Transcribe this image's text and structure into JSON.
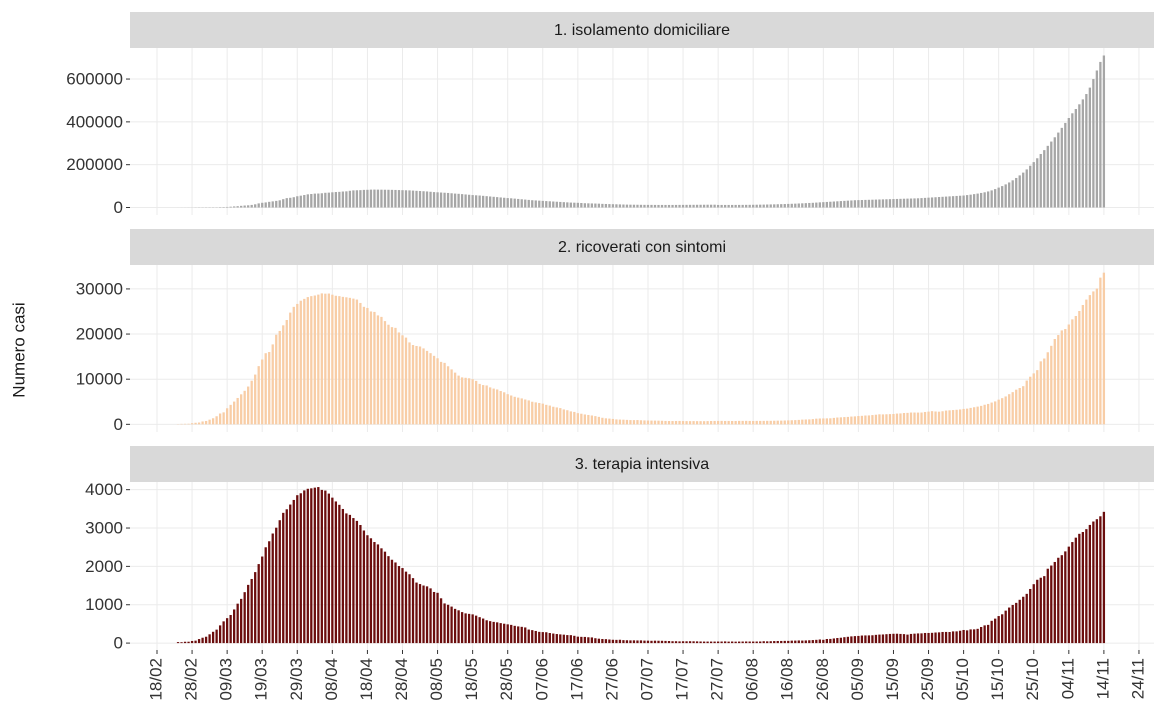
{
  "chart_data": {
    "type": "bar",
    "y_label": "Numero casi",
    "categories": [
      "18/02",
      null,
      null,
      null,
      null,
      null,
      null,
      null,
      null,
      null,
      "28/02",
      null,
      null,
      null,
      null,
      null,
      null,
      null,
      null,
      null,
      "09/03",
      null,
      null,
      null,
      null,
      null,
      null,
      null,
      null,
      null,
      "19/03",
      null,
      null,
      null,
      null,
      null,
      null,
      null,
      null,
      null,
      "29/03",
      null,
      null,
      null,
      null,
      null,
      null,
      null,
      null,
      null,
      "08/04",
      null,
      null,
      null,
      null,
      null,
      null,
      null,
      null,
      null,
      "18/04",
      null,
      null,
      null,
      null,
      null,
      null,
      null,
      null,
      null,
      "28/04",
      null,
      null,
      null,
      null,
      null,
      null,
      null,
      null,
      null,
      "08/05",
      null,
      null,
      null,
      null,
      null,
      null,
      null,
      null,
      null,
      "18/05",
      null,
      null,
      null,
      null,
      null,
      null,
      null,
      null,
      null,
      "28/05",
      null,
      null,
      null,
      null,
      null,
      null,
      null,
      null,
      null,
      "07/06",
      null,
      null,
      null,
      null,
      null,
      null,
      null,
      null,
      null,
      "17/06",
      null,
      null,
      null,
      null,
      null,
      null,
      null,
      null,
      null,
      "27/06",
      null,
      null,
      null,
      null,
      null,
      null,
      null,
      null,
      null,
      "07/07",
      null,
      null,
      null,
      null,
      null,
      null,
      null,
      null,
      null,
      "17/07",
      null,
      null,
      null,
      null,
      null,
      null,
      null,
      null,
      null,
      "27/07",
      null,
      null,
      null,
      null,
      null,
      null,
      null,
      null,
      null,
      "06/08",
      null,
      null,
      null,
      null,
      null,
      null,
      null,
      null,
      null,
      "16/08",
      null,
      null,
      null,
      null,
      null,
      null,
      null,
      null,
      null,
      "26/08",
      null,
      null,
      null,
      null,
      null,
      null,
      null,
      null,
      null,
      "05/09",
      null,
      null,
      null,
      null,
      null,
      null,
      null,
      null,
      null,
      "15/09",
      null,
      null,
      null,
      null,
      null,
      null,
      null,
      null,
      null,
      "25/09",
      null,
      null,
      null,
      null,
      null,
      null,
      null,
      null,
      null,
      "05/10",
      null,
      null,
      null,
      null,
      null,
      null,
      null,
      null,
      null,
      "15/10",
      null,
      null,
      null,
      null,
      null,
      null,
      null,
      null,
      null,
      "25/10",
      null,
      null,
      null,
      null,
      null,
      null,
      null,
      null,
      null,
      "04/11",
      null,
      null,
      null,
      null,
      null,
      null,
      null,
      null,
      null,
      "14/11",
      null,
      null,
      null,
      null,
      null,
      null,
      null,
      null,
      null,
      "24/11"
    ],
    "panels": [
      {
        "title": "1. isolamento domiciliare",
        "color": "#a6a6a6",
        "ylim": [
          -35000,
          745000
        ],
        "yticks": [
          0,
          200000,
          400000,
          600000
        ],
        "values": [
          null,
          null,
          null,
          null,
          null,
          null,
          94,
          162,
          221,
          284,
          412,
          543,
          798,
          927,
          1000,
          1065,
          1155,
          1060,
          1843,
          2180,
          2599,
          3724,
          5036,
          6201,
          7860,
          9268,
          10197,
          12090,
          14935,
          19185,
          22116,
          23783,
          26522,
          28697,
          30920,
          33648,
          38937,
          43752,
          45420,
          48134,
          52579,
          55270,
          58320,
          61557,
          63084,
          64873,
          65285,
          66534,
          68744,
          69497,
          71063,
          72333,
          73094,
          74696,
          75528,
          78087,
          80031,
          80589,
          81104,
          82286,
          82722,
          83504,
          83652,
          83504,
          83250,
          83000,
          82800,
          82500,
          82000,
          81500,
          81000,
          80500,
          80000,
          79000,
          78000,
          77000,
          76000,
          75000,
          73500,
          72000,
          71000,
          70000,
          69000,
          68000,
          66500,
          65000,
          64000,
          62500,
          61000,
          59500,
          58000,
          57000,
          56000,
          54500,
          53000,
          51500,
          50000,
          48500,
          47000,
          45500,
          44000,
          43000,
          41500,
          40000,
          38500,
          37000,
          35500,
          34000,
          33000,
          32000,
          31000,
          30000,
          29000,
          28000,
          27000,
          26000,
          25000,
          24000,
          23000,
          22500,
          22000,
          21000,
          20000,
          19500,
          19000,
          18500,
          18000,
          17000,
          16500,
          16000,
          15500,
          15000,
          14500,
          14000,
          13500,
          13200,
          13000,
          12800,
          12600,
          12400,
          12300,
          12200,
          12100,
          12000,
          12000,
          12000,
          12000,
          12000,
          12100,
          12200,
          12300,
          12400,
          12500,
          12600,
          12700,
          12800,
          12900,
          13000,
          13000,
          13100,
          12000,
          12000,
          12000,
          12000,
          12000,
          12100,
          12200,
          12300,
          12400,
          12500,
          12800,
          13000,
          13300,
          13600,
          14000,
          14400,
          14800,
          15200,
          15700,
          16200,
          16800,
          17400,
          18000,
          18800,
          19600,
          20400,
          21200,
          22000,
          23000,
          24000,
          25000,
          26000,
          27000,
          28000,
          29000,
          30000,
          31000,
          32000,
          33000,
          34000,
          34500,
          35000,
          35500,
          36000,
          36500,
          37000,
          37500,
          38000,
          38500,
          39000,
          39500,
          40000,
          40500,
          41000,
          41500,
          42000,
          42500,
          43000,
          44000,
          45000,
          46000,
          47000,
          48000,
          49000,
          50000,
          51000,
          52000,
          53000,
          54000,
          55000,
          56000,
          58000,
          60000,
          62500,
          65000,
          68000,
          71000,
          75000,
          80000,
          86000,
          93000,
          100000,
          108000,
          117000,
          127000,
          138000,
          150000,
          163000,
          178000,
          195000,
          212000,
          230000,
          250000,
          268000,
          288000,
          308000,
          328000,
          350000,
          372000,
          395000,
          418000,
          440000,
          460000,
          482000,
          505000,
          530000,
          560000,
          600000,
          640000,
          680000,
          710000,
          null,
          null,
          null,
          null,
          null,
          null,
          null,
          null,
          null,
          null
        ]
      },
      {
        "title": "2. ricoverati con sintomi",
        "color": "#f8cda6",
        "ylim": [
          -1700,
          35300
        ],
        "yticks": [
          0,
          10000,
          20000,
          30000
        ],
        "values": [
          null,
          null,
          null,
          null,
          null,
          null,
          54,
          99,
          114,
          128,
          248,
          345,
          401,
          639,
          742,
          1034,
          1346,
          1790,
          2394,
          2651,
          3557,
          4316,
          5038,
          5838,
          6650,
          7426,
          8372,
          9663,
          11025,
          12894,
          14363,
          15757,
          16020,
          17708,
          19846,
          20692,
          21937,
          23112,
          24753,
          26029,
          26676,
          27386,
          27795,
          28192,
          28403,
          28540,
          28741,
          29010,
          28949,
          28976,
          28718,
          28485,
          28399,
          28242,
          28144,
          28023,
          27847,
          27643,
          26893,
          26033,
          25786,
          25007,
          24906,
          24134,
          23805,
          22871,
          22068,
          21533,
          21372,
          20353,
          19723,
          19210,
          18149,
          17569,
          17357,
          17242,
          16823,
          16270,
          15769,
          15174,
          14636,
          13834,
          13618,
          12865,
          12172,
          11453,
          10792,
          10400,
          10311,
          10207,
          9991,
          9624,
          8957,
          8695,
          8613,
          8185,
          7917,
          7729,
          7379,
          7096,
          6680,
          6387,
          6099,
          5916,
          5742,
          5503,
          5301,
          5002,
          4864,
          4729,
          4581,
          4320,
          4156,
          3893,
          3747,
          3594,
          3301,
          3123,
          2868,
          2749,
          2474,
          2348,
          2186,
          2076,
          1960,
          1818,
          1650,
          1451,
          1330,
          1271,
          1194,
          1090,
          1049,
          1026,
          985,
          939,
          931,
          945,
          898,
          867,
          842,
          827,
          818,
          808,
          786,
          749,
          732,
          727,
          740,
          750,
          724,
          711,
          707,
          716,
          705,
          703,
          699,
          714,
          737,
          749,
          755,
          762,
          745,
          749,
          737,
          737,
          764,
          760,
          766,
          751,
          738,
          761,
          758,
          763,
          777,
          780,
          794,
          814,
          818,
          843,
          871,
          903,
          931,
          980,
          1045,
          1068,
          1094,
          1155,
          1252,
          1290,
          1305,
          1321,
          1336,
          1425,
          1506,
          1550,
          1600,
          1641,
          1719,
          1760,
          1836,
          1881,
          1951,
          1971,
          2052,
          2129,
          2222,
          2200,
          2228,
          2256,
          2291,
          2380,
          2414,
          2511,
          2536,
          2615,
          2610,
          2604,
          2614,
          2735,
          2819,
          2919,
          2846,
          2801,
          2898,
          3047,
          3105,
          3162,
          3223,
          3299,
          3413,
          3476,
          3639,
          3785,
          3925,
          4086,
          4336,
          4519,
          4821,
          5076,
          5470,
          5796,
          6178,
          6680,
          7131,
          7676,
          8047,
          8454,
          9694,
          10549,
          11287,
          12006,
          13955,
          14581,
          15964,
          17391,
          18902,
          19784,
          20809,
          21114,
          22116,
          23256,
          24005,
          25109,
          26440,
          27636,
          28633,
          29444,
          30081,
          32500,
          33600,
          null,
          null,
          null,
          null,
          null,
          null,
          null,
          null,
          null,
          null
        ]
      },
      {
        "title": "3. terapia intensiva",
        "color": "#6b0d0d",
        "ylim": [
          -180,
          4200
        ],
        "yticks": [
          0,
          1000,
          2000,
          3000,
          4000
        ],
        "values": [
          null,
          null,
          null,
          null,
          null,
          null,
          26,
          23,
          35,
          36,
          56,
          64,
          105,
          140,
          166,
          229,
          295,
          351,
          462,
          567,
          650,
          733,
          877,
          1028,
          1153,
          1328,
          1518,
          1672,
          1851,
          2060,
          2257,
          2498,
          2655,
          2857,
          3009,
          3204,
          3396,
          3489,
          3612,
          3732,
          3856,
          3906,
          3981,
          4023,
          4035,
          4053,
          4068,
          3994,
          3977,
          3898,
          3792,
          3693,
          3605,
          3497,
          3381,
          3343,
          3260,
          3186,
          3079,
          2936,
          2812,
          2733,
          2635,
          2573,
          2471,
          2384,
          2267,
          2173,
          2102,
          2009,
          1956,
          1863,
          1795,
          1694,
          1578,
          1539,
          1501,
          1479,
          1427,
          1333,
          1311,
          1168,
          1034,
          999,
          952,
          893,
          855,
          808,
          775,
          762,
          749,
          716,
          676,
          640,
          595,
          572,
          553,
          541,
          521,
          505,
          489,
          475,
          450,
          435,
          424,
          408,
          353,
          338,
          316,
          293,
          287,
          283,
          263,
          249,
          236,
          227,
          220,
          209,
          207,
          190,
          168,
          163,
          161,
          152,
          148,
          127,
          115,
          107,
          103,
          94,
          87,
          84,
          87,
          77,
          74,
          71,
          72,
          69,
          71,
          65,
          64,
          60,
          63,
          61,
          60,
          57,
          54,
          49,
          49,
          45,
          48,
          47,
          49,
          47,
          45,
          42,
          40,
          40,
          40,
          40,
          41,
          41,
          44,
          39,
          41,
          38,
          40,
          41,
          42,
          41,
          41,
          41,
          42,
          49,
          46,
          49,
          53,
          55,
          56,
          58,
          58,
          64,
          65,
          69,
          66,
          69,
          74,
          79,
          85,
          94,
          86,
          107,
          109,
          121,
          133,
          140,
          154,
          164,
          175,
          182,
          187,
          197,
          200,
          201,
          204,
          215,
          222,
          225,
          232,
          239,
          243,
          244,
          239,
          234,
          221,
          239,
          246,
          252,
          254,
          264,
          264,
          268,
          276,
          280,
          290,
          291,
          289,
          305,
          306,
          322,
          342,
          332,
          357,
          358,
          372,
          420,
          462,
          475,
          581,
          638,
          705,
          751,
          846,
          927,
          994,
          1049,
          1129,
          1208,
          1284,
          1411,
          1536,
          1651,
          1704,
          1746,
          1939,
          2022,
          2115,
          2225,
          2292,
          2391,
          2515,
          2634,
          2749,
          2849,
          2896,
          2971,
          3081,
          3170,
          3230,
          3306,
          3422,
          null,
          null,
          null,
          null,
          null,
          null,
          null,
          null,
          null,
          null
        ]
      }
    ]
  }
}
